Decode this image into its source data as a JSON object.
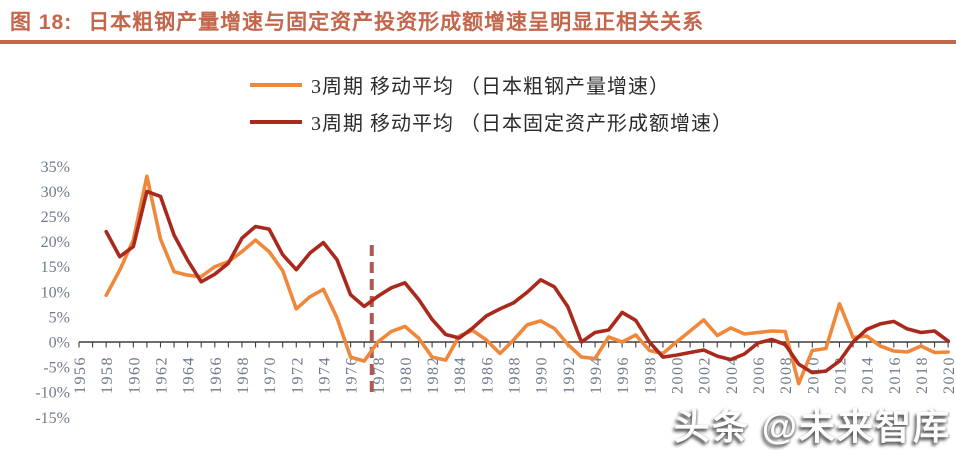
{
  "header": {
    "figure_label": "图 18:",
    "title": "日本粗钢产量增速与固定资产投资形成额增速呈明显正相关关系",
    "accent_color": "#C3664B"
  },
  "watermark": "头条 @未来智库",
  "chart_data": {
    "type": "line",
    "title": "",
    "xlim": [
      1956,
      2020
    ],
    "ylim": [
      -15,
      35
    ],
    "grid": false,
    "legend_position": "top",
    "axis_color": "#3F3F3F",
    "tick_label_color": "#6F7A88",
    "x_tick_step_years": 2,
    "x_ticks": [
      1956,
      1958,
      1960,
      1962,
      1964,
      1966,
      1968,
      1970,
      1972,
      1974,
      1976,
      1978,
      1980,
      1982,
      1984,
      1986,
      1988,
      1990,
      1992,
      1994,
      1996,
      1998,
      2000,
      2002,
      2004,
      2006,
      2008,
      2010,
      2012,
      2014,
      2016,
      2018,
      2020
    ],
    "y_ticks": [
      {
        "label": "35%",
        "value": 35
      },
      {
        "label": "30%",
        "value": 30
      },
      {
        "label": "25%",
        "value": 25
      },
      {
        "label": "20%",
        "value": 20
      },
      {
        "label": "15%",
        "value": 15
      },
      {
        "label": "10%",
        "value": 10
      },
      {
        "label": "5%",
        "value": 5
      },
      {
        "label": "0%",
        "value": 0
      },
      {
        "label": "-5%",
        "value": -5
      },
      {
        "label": "-10%",
        "value": -10
      },
      {
        "label": "-15%",
        "value": -15
      }
    ],
    "marker_line": {
      "year": 1978,
      "style": "dashed",
      "color": "#A8423B"
    },
    "start_year": 1958,
    "x_step": 1,
    "series": [
      {
        "name": "3周期 移动平均 （日本粗钢产量增速）",
        "color": "#F0883C",
        "start_year": 1958,
        "values": [
          9.3,
          14.3,
          20.3,
          33.0,
          20.5,
          14.0,
          13.3,
          13.0,
          15.0,
          16.0,
          18.0,
          20.3,
          18.0,
          14.2,
          6.6,
          9.0,
          10.5,
          4.8,
          -3.0,
          -3.8,
          0.0,
          2.1,
          3.1,
          0.8,
          -3.0,
          -3.6,
          1.2,
          2.3,
          0.4,
          -2.3,
          0.4,
          3.4,
          4.2,
          2.7,
          -0.5,
          -3.0,
          -3.3,
          1.0,
          0.0,
          1.4,
          -1.7,
          -2.3,
          0.0,
          2.2,
          4.4,
          1.3,
          2.8,
          1.6,
          1.9,
          2.2,
          2.1,
          -8.3,
          -1.7,
          -1.3,
          7.6,
          0.9,
          1.2,
          -0.8,
          -1.8,
          -2.0,
          -0.8,
          -2.1,
          -2.0
        ]
      },
      {
        "name": "3周期 移动平均 （日本固定资产形成额增速）",
        "color": "#A9291D",
        "start_year": 1958,
        "values": [
          22.0,
          17.0,
          19.0,
          30.0,
          29.0,
          21.3,
          16.3,
          12.0,
          13.5,
          15.7,
          20.7,
          23.0,
          22.5,
          17.4,
          14.4,
          17.7,
          19.8,
          16.4,
          9.4,
          7.1,
          9.1,
          10.8,
          11.8,
          8.5,
          4.5,
          1.5,
          0.8,
          2.8,
          5.2,
          6.6,
          7.8,
          9.9,
          12.4,
          11.0,
          7.0,
          0.0,
          1.9,
          2.4,
          5.9,
          4.3,
          0.0,
          -3.0,
          -2.6,
          -2.1,
          -1.6,
          -2.8,
          -3.5,
          -2.4,
          -0.2,
          0.5,
          -0.5,
          -4.4,
          -6.1,
          -5.8,
          -3.8,
          0.0,
          2.5,
          3.6,
          4.1,
          2.6,
          1.9,
          2.2,
          0.2
        ]
      }
    ]
  }
}
